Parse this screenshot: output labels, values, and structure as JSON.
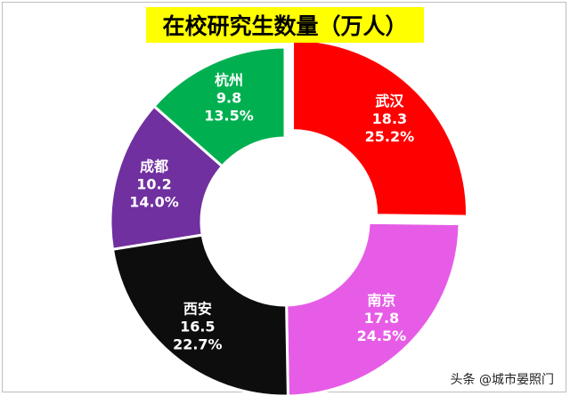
{
  "header": {
    "title": "在校研究生数量（万人）"
  },
  "chart_data": {
    "type": "pie",
    "title": "在校研究生数量（万人）",
    "donut": true,
    "categories": [
      "武汉",
      "南京",
      "西安",
      "成都",
      "杭州"
    ],
    "values": [
      18.3,
      17.8,
      16.5,
      10.2,
      9.8
    ],
    "value_labels": [
      "18.3",
      "17.8",
      "16.5",
      "10.2",
      "9.8"
    ],
    "percent_labels": [
      "25.2%",
      "24.5%",
      "22.7%",
      "14.0%",
      "13.5%"
    ],
    "colors": [
      "#ff0000",
      "#e65ce6",
      "#0d0d0d",
      "#7030a0",
      "#00b050"
    ],
    "exploded": "武汉",
    "legend": "none"
  },
  "watermark": {
    "text": "头条 @城市晏照门"
  }
}
